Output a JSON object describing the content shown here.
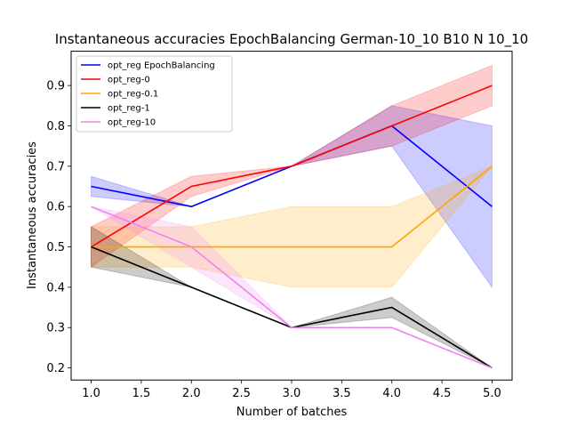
{
  "chart_data": {
    "type": "line",
    "title": "Instantaneous accuracies EpochBalancing German-10_10 B10 N 10_10",
    "xlabel": "Number of batches",
    "ylabel": "Instantaneous accuracies",
    "x": [
      1,
      2,
      3,
      4,
      5
    ],
    "xlim": [
      0.8,
      5.2
    ],
    "ylim": [
      0.17,
      0.985
    ],
    "xticks": [
      "1.0",
      "1.5",
      "2.0",
      "2.5",
      "3.0",
      "3.5",
      "4.0",
      "4.5",
      "5.0"
    ],
    "yticks": [
      "0.2",
      "0.3",
      "0.4",
      "0.5",
      "0.6",
      "0.7",
      "0.8",
      "0.9"
    ],
    "grid": false,
    "legend_position": "top-left",
    "series": [
      {
        "name": "opt_reg EpochBalancing",
        "color": "#0000ff",
        "values": [
          0.65,
          0.6,
          0.7,
          0.8,
          0.6
        ],
        "lower": [
          0.625,
          0.6,
          0.7,
          0.75,
          0.4
        ],
        "upper": [
          0.675,
          0.6,
          0.7,
          0.85,
          0.8
        ]
      },
      {
        "name": "opt_reg-0",
        "color": "#ff0000",
        "values": [
          0.5,
          0.65,
          0.7,
          0.8,
          0.9
        ],
        "lower": [
          0.45,
          0.625,
          0.7,
          0.75,
          0.85
        ],
        "upper": [
          0.55,
          0.675,
          0.7,
          0.85,
          0.95
        ]
      },
      {
        "name": "opt_reg-0.1",
        "color": "#ffa500",
        "values": [
          0.5,
          0.5,
          0.5,
          0.5,
          0.7
        ],
        "lower": [
          0.45,
          0.45,
          0.4,
          0.4,
          0.7
        ],
        "upper": [
          0.55,
          0.55,
          0.6,
          0.6,
          0.7
        ]
      },
      {
        "name": "opt_reg-1",
        "color": "#000000",
        "values": [
          0.5,
          0.4,
          0.3,
          0.35,
          0.2
        ],
        "lower": [
          0.45,
          0.4,
          0.3,
          0.325,
          0.2
        ],
        "upper": [
          0.55,
          0.4,
          0.3,
          0.375,
          0.2
        ]
      },
      {
        "name": "opt_reg-10",
        "color": "#ee82ee",
        "values": [
          0.6,
          0.5,
          0.3,
          0.3,
          0.2
        ],
        "lower": [
          0.6,
          0.45,
          0.3,
          0.3,
          0.2
        ],
        "upper": [
          0.6,
          0.55,
          0.3,
          0.3,
          0.2
        ]
      }
    ]
  }
}
